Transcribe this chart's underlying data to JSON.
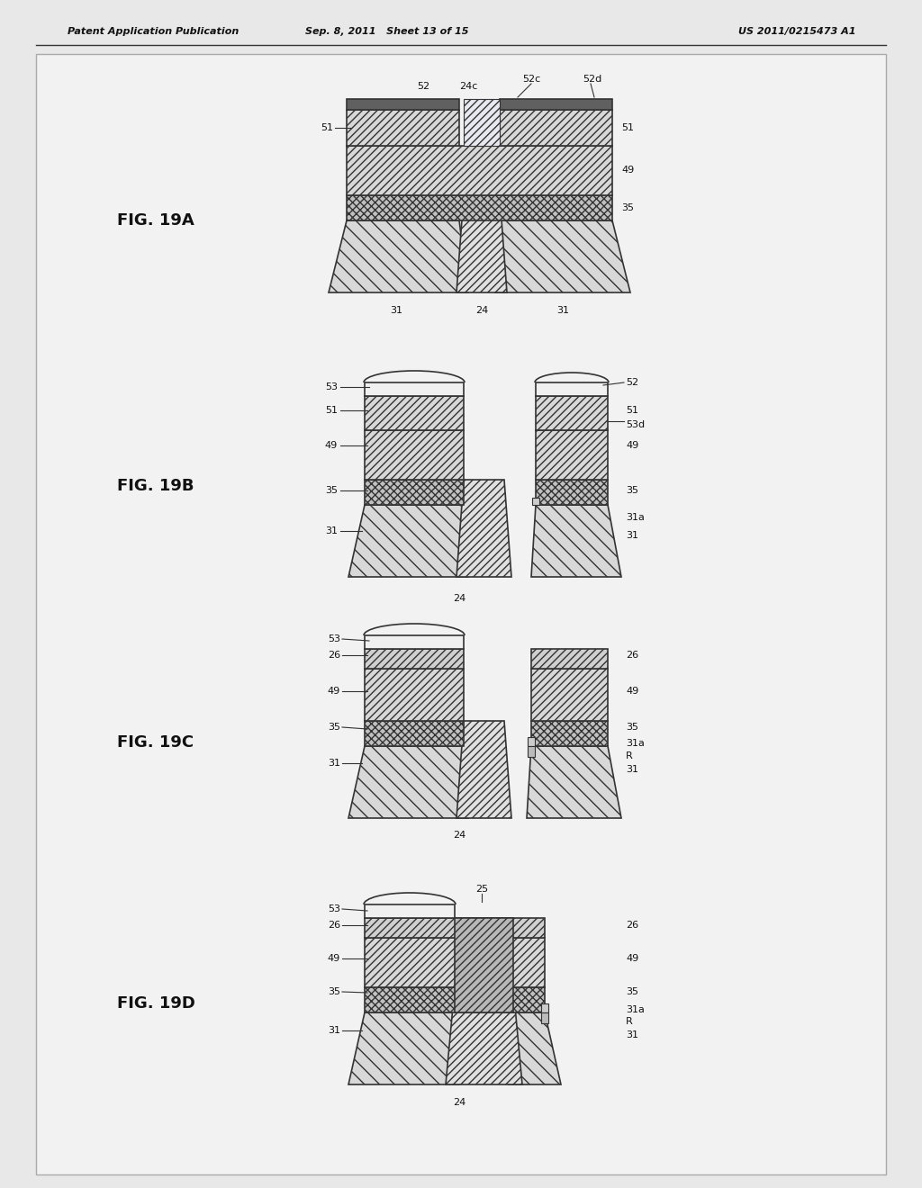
{
  "header_left": "Patent Application Publication",
  "header_mid": "Sep. 8, 2011   Sheet 13 of 15",
  "header_right": "US 2011/0215473 A1",
  "bg": "#e8e8e8",
  "white": "#ffffff",
  "hatch_diag": "////",
  "hatch_back": "\\\\",
  "hatch_chevron": "xxxx",
  "ec": "#333333",
  "fc_31": "#d8d8d8",
  "fc_35": "#c0c0c0",
  "fc_49": "#d8d8d8",
  "fc_51": "#d8d8d8",
  "fc_52": "#606060",
  "fc_26": "#d0d0d0",
  "fc_25": "#b8b8b8",
  "fc_resist": "#f0f0f0",
  "fc_post": "#e0e0e0"
}
